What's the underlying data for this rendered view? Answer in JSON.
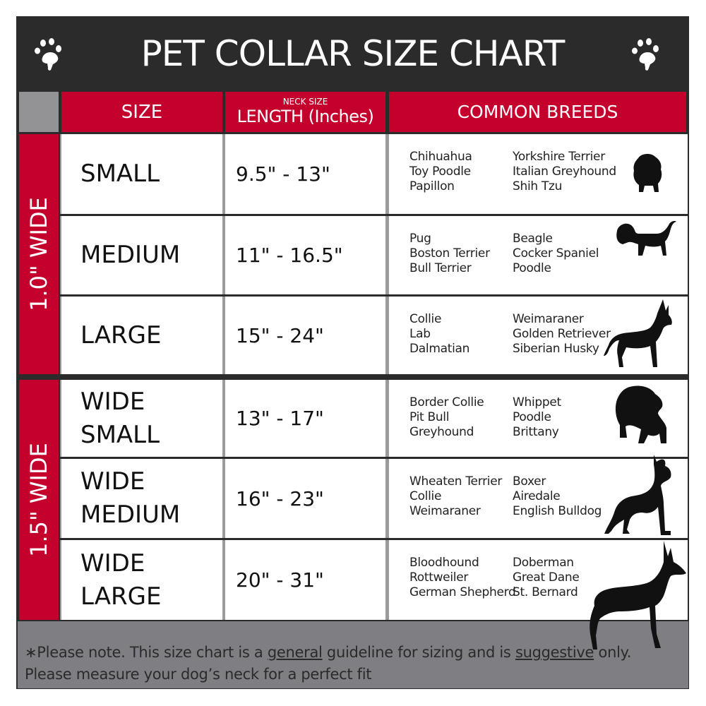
{
  "title": "PET COLLAR SIZE CHART",
  "icons": {
    "left": "paw-print-icon",
    "right": "paw-print-icon"
  },
  "colors": {
    "accent": "#c4002c",
    "dark": "#2b2b2b",
    "footer": "#7f7f83"
  },
  "headers": {
    "size": "SIZE",
    "length_small": "NECK SIZE",
    "length": "LENGTH (Inches)",
    "breeds": "COMMON BREEDS"
  },
  "groups": [
    {
      "label": "1.0\" WIDE"
    },
    {
      "label": "1.5\" WIDE"
    }
  ],
  "rows": [
    {
      "size": [
        "SMALL"
      ],
      "length": "9.5\" - 13\"",
      "breeds_a": [
        "Chihuahua",
        "Toy Poodle",
        "Papillon"
      ],
      "breeds_b": [
        "Yorkshire Terrier",
        "Italian Greyhound",
        "Shih Tzu"
      ],
      "icon": "small-dog-silhouette-icon"
    },
    {
      "size": [
        "MEDIUM"
      ],
      "length": "11\" - 16.5\"",
      "breeds_a": [
        "Pug",
        "Boston Terrier",
        "Bull Terrier"
      ],
      "breeds_b": [
        "Beagle",
        "Cocker Spaniel",
        "Poodle"
      ],
      "icon": "medium-dog-silhouette-icon"
    },
    {
      "size": [
        "LARGE"
      ],
      "length": "15\" - 24\"",
      "breeds_a": [
        "Collie",
        "Lab",
        "Dalmatian"
      ],
      "breeds_b": [
        "Weimaraner",
        "Golden Retriever",
        "Siberian Husky"
      ],
      "icon": "large-dog-silhouette-icon"
    },
    {
      "size": [
        "WIDE",
        "SMALL"
      ],
      "length": "13\" - 17\"",
      "breeds_a": [
        "Border Collie",
        "Pit Bull",
        "Greyhound"
      ],
      "breeds_b": [
        "Whippet",
        "Poodle",
        "Brittany"
      ],
      "icon": "bulldog-silhouette-icon"
    },
    {
      "size": [
        "WIDE",
        "MEDIUM"
      ],
      "length": "16\" - 23\"",
      "breeds_a": [
        "Wheaten Terrier",
        "Collie",
        "Weimaraner"
      ],
      "breeds_b": [
        "Boxer",
        "Airedale",
        "English Bulldog"
      ],
      "icon": "pitbull-silhouette-icon"
    },
    {
      "size": [
        "WIDE",
        "LARGE"
      ],
      "length": "20\" - 31\"",
      "breeds_a": [
        "Bloodhound",
        "Rottweiler",
        "German Shepherd"
      ],
      "breeds_b": [
        "Doberman",
        "Great Dane",
        "St. Bernard"
      ],
      "icon": "doberman-silhouette-icon"
    }
  ],
  "footer": {
    "line1_a": "∗Please note. This size chart is a ",
    "line1_u1": "general",
    "line1_b": " guideline for sizing and is ",
    "line1_u2": "suggestive",
    "line1_c": " only.",
    "line2": "Please measure your dog’s neck for a perfect fit"
  }
}
